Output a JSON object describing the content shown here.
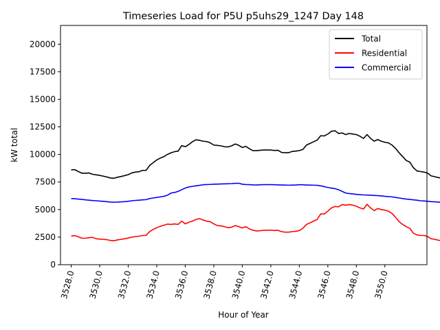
{
  "chart_data": {
    "type": "line",
    "title": "Timeseries Load for P5U p5uhs29_1247  Day 148",
    "xlabel": "Hour of Year",
    "ylabel": "kW total",
    "xlim": [
      3527.25,
      3552.95
    ],
    "ylim": [
      0,
      21700
    ],
    "xticks": [
      3528,
      3530,
      3532,
      3534,
      3536,
      3538,
      3540,
      3542,
      3544,
      3546,
      3548,
      3550
    ],
    "xtick_labels": [
      "3528.0",
      "3530.0",
      "3532.0",
      "3534.0",
      "3536.0",
      "3538.0",
      "3540.0",
      "3542.0",
      "3544.0",
      "3546.0",
      "3548.0",
      "3550.0"
    ],
    "yticks": [
      0,
      2500,
      5000,
      7500,
      10000,
      12500,
      15000,
      17500,
      20000
    ],
    "ytick_labels": [
      "0",
      "2500",
      "5000",
      "7500",
      "10000",
      "12500",
      "15000",
      "17500",
      "20000"
    ],
    "legend": {
      "placement": "top-right"
    },
    "x_start": 3528.0,
    "x_step": 0.25,
    "series": [
      {
        "name": "Total",
        "color": "#000000",
        "values": [
          8600,
          8620,
          8450,
          8300,
          8300,
          8320,
          8200,
          8150,
          8100,
          8030,
          7960,
          7860,
          7840,
          7930,
          8000,
          8080,
          8170,
          8320,
          8400,
          8430,
          8550,
          8550,
          9000,
          9250,
          9500,
          9670,
          9800,
          10000,
          10150,
          10250,
          10300,
          10800,
          10700,
          10900,
          11150,
          11330,
          11280,
          11200,
          11170,
          11050,
          10850,
          10820,
          10780,
          10700,
          10680,
          10780,
          10950,
          10830,
          10630,
          10730,
          10520,
          10340,
          10340,
          10380,
          10400,
          10400,
          10400,
          10360,
          10380,
          10180,
          10150,
          10160,
          10270,
          10300,
          10350,
          10450,
          10850,
          11000,
          11150,
          11300,
          11700,
          11680,
          11850,
          12100,
          12150,
          11900,
          11950,
          11800,
          11900,
          11850,
          11800,
          11650,
          11450,
          11800,
          11450,
          11200,
          11350,
          11200,
          11100,
          11050,
          10850,
          10550,
          10150,
          9800,
          9450,
          9300,
          8800,
          8500,
          8450,
          8400,
          8300,
          8050,
          7980,
          7900,
          7850,
          7780
        ]
      },
      {
        "name": "Residential",
        "color": "#ff0000",
        "values": [
          2600,
          2640,
          2530,
          2400,
          2400,
          2450,
          2480,
          2350,
          2320,
          2300,
          2270,
          2200,
          2170,
          2250,
          2300,
          2350,
          2420,
          2500,
          2550,
          2580,
          2650,
          2660,
          3000,
          3200,
          3350,
          3480,
          3580,
          3680,
          3650,
          3700,
          3650,
          3950,
          3700,
          3850,
          3950,
          4100,
          4180,
          4050,
          3950,
          3900,
          3700,
          3550,
          3520,
          3450,
          3350,
          3400,
          3550,
          3450,
          3330,
          3450,
          3250,
          3120,
          3060,
          3080,
          3120,
          3120,
          3140,
          3100,
          3120,
          3000,
          2950,
          2950,
          3000,
          3030,
          3100,
          3300,
          3650,
          3800,
          3950,
          4100,
          4600,
          4600,
          4850,
          5150,
          5280,
          5250,
          5450,
          5400,
          5450,
          5400,
          5300,
          5150,
          5050,
          5480,
          5150,
          4900,
          5100,
          5000,
          4950,
          4850,
          4650,
          4300,
          3900,
          3650,
          3450,
          3300,
          2850,
          2700,
          2650,
          2650,
          2550,
          2350,
          2300,
          2220,
          2180,
          2130
        ]
      },
      {
        "name": "Commercial",
        "color": "#0000ff",
        "values": [
          6000,
          5980,
          5950,
          5920,
          5880,
          5850,
          5820,
          5800,
          5770,
          5750,
          5720,
          5680,
          5670,
          5680,
          5700,
          5720,
          5750,
          5800,
          5830,
          5850,
          5880,
          5900,
          6000,
          6050,
          6100,
          6150,
          6200,
          6300,
          6500,
          6550,
          6650,
          6800,
          6950,
          7050,
          7100,
          7150,
          7200,
          7250,
          7270,
          7280,
          7300,
          7310,
          7320,
          7330,
          7340,
          7350,
          7380,
          7390,
          7300,
          7270,
          7260,
          7240,
          7230,
          7250,
          7260,
          7260,
          7260,
          7250,
          7240,
          7230,
          7220,
          7210,
          7220,
          7230,
          7250,
          7250,
          7220,
          7220,
          7210,
          7200,
          7150,
          7080,
          7000,
          6950,
          6900,
          6800,
          6650,
          6500,
          6450,
          6420,
          6380,
          6350,
          6330,
          6320,
          6300,
          6280,
          6260,
          6240,
          6200,
          6180,
          6150,
          6100,
          6050,
          6000,
          5950,
          5920,
          5880,
          5850,
          5800,
          5780,
          5750,
          5720,
          5700,
          5680,
          5670,
          5650
        ]
      }
    ]
  }
}
